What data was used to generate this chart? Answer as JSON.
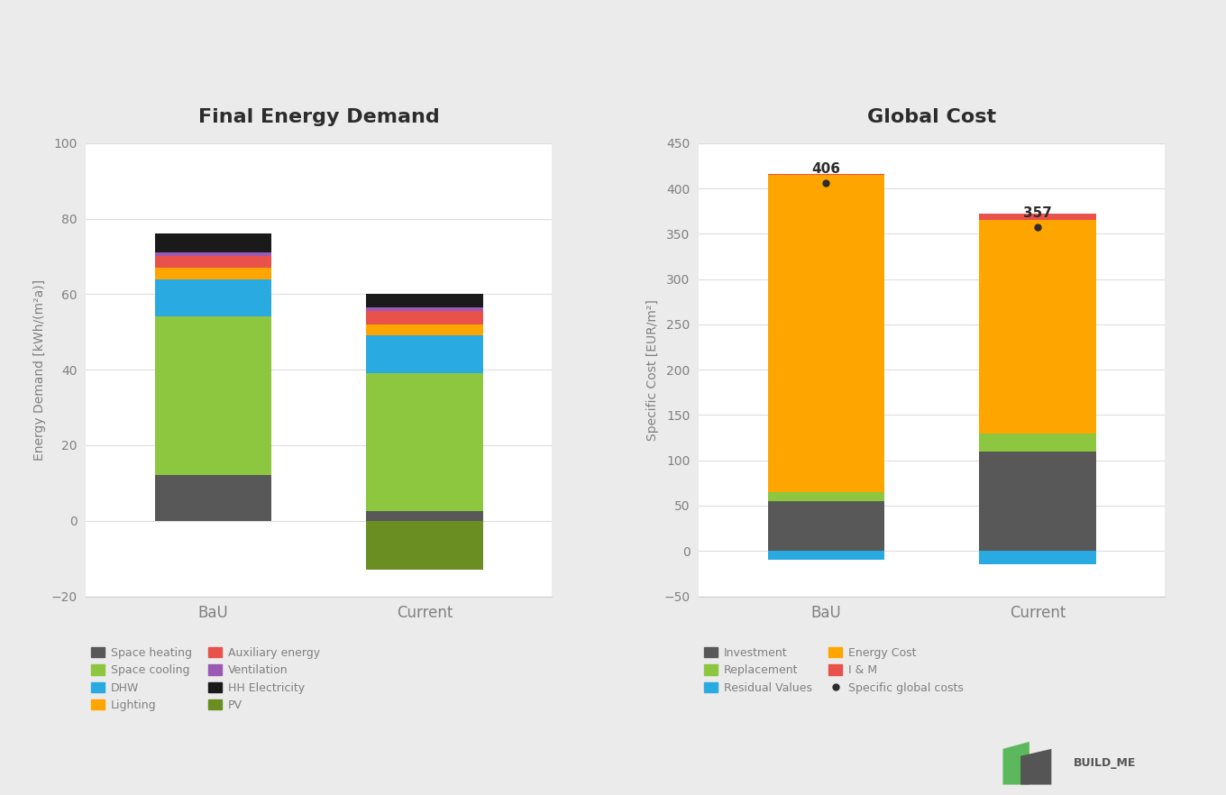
{
  "left_title": "Final Energy Demand",
  "right_title": "Global Cost",
  "left_ylabel": "Energy Demand [kWh/(m²a)]",
  "right_ylabel": "Specific Cost [EUR/m²]",
  "categories": [
    "BaU",
    "Current"
  ],
  "left_ylim": [
    -20,
    100
  ],
  "left_yticks": [
    -20,
    0,
    20,
    40,
    60,
    80,
    100
  ],
  "right_ylim": [
    -50,
    450
  ],
  "right_yticks": [
    -50,
    0,
    50,
    100,
    150,
    200,
    250,
    300,
    350,
    400,
    450
  ],
  "energy_components": {
    "Space heating": {
      "color": "#585858",
      "BaU": 12.0,
      "Current": 2.5
    },
    "Space cooling": {
      "color": "#8DC63F",
      "BaU": 42.0,
      "Current": 36.5
    },
    "DHW": {
      "color": "#29ABE2",
      "BaU": 10.0,
      "Current": 10.0
    },
    "Lighting": {
      "color": "#FFA500",
      "BaU": 3.0,
      "Current": 3.0
    },
    "Auxiliary energy": {
      "color": "#E8524A",
      "BaU": 3.0,
      "Current": 3.5
    },
    "Ventilation": {
      "color": "#9B59B6",
      "BaU": 1.0,
      "Current": 1.0
    },
    "HH Electricity": {
      "color": "#1A1A1A",
      "BaU": 5.0,
      "Current": 3.5
    },
    "PV": {
      "color": "#6B8E23",
      "BaU": 0.0,
      "Current": -13.0
    }
  },
  "cost_components": {
    "Investment": {
      "color": "#585858",
      "BaU": 55.0,
      "Current": 110.0
    },
    "Residual Values": {
      "color": "#29ABE2",
      "BaU": -10.0,
      "Current": -15.0
    },
    "Replacement": {
      "color": "#8DC63F",
      "BaU": 10.0,
      "Current": 20.0
    },
    "Energy Cost": {
      "color": "#FFA500",
      "BaU": 350.0,
      "Current": 235.0
    },
    "I & M": {
      "color": "#E8524A",
      "BaU": 1.0,
      "Current": 7.0
    }
  },
  "cost_totals": {
    "BaU": 406,
    "Current": 357
  },
  "bg_color": "#EBEBEB",
  "plot_bg": "#FFFFFF",
  "title_bg": "#D0D0D0",
  "text_color": "#808080",
  "bar_width": 0.55
}
